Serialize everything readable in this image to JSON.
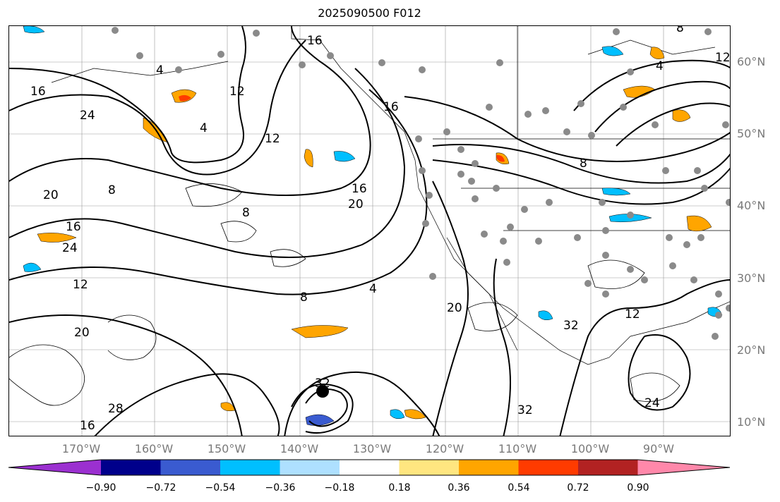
{
  "title": "2025090500 F012",
  "lat_labels": [
    "60°N",
    "50°N",
    "40°N",
    "30°N",
    "20°N",
    "10°N"
  ],
  "lon_labels": [
    "170°W",
    "160°W",
    "150°W",
    "140°W",
    "130°W",
    "120°W",
    "110°W",
    "100°W",
    "90°W"
  ],
  "colorbar": {
    "ticks": [
      "−0.90",
      "−0.72",
      "−0.54",
      "−0.36",
      "−0.18",
      "0.18",
      "0.36",
      "0.54",
      "0.72",
      "0.90"
    ],
    "colors": [
      "#9b30d0",
      "#00008b",
      "#3a5bd0",
      "#00bfff",
      "#aee0ff",
      "#ffffff",
      "#ffe680",
      "#ffa500",
      "#ff3b00",
      "#b22222",
      "#ff88aa"
    ],
    "extend": "both"
  },
  "contour_labels": [
    "16",
    "8",
    "12",
    "24",
    "4",
    "20",
    "16",
    "8",
    "12",
    "16",
    "20",
    "8",
    "4",
    "20",
    "32",
    "32",
    "32",
    "24",
    "12",
    "16",
    "8",
    "12",
    "4",
    "28",
    "16",
    "20",
    "24",
    "16",
    "8",
    "4",
    "12"
  ],
  "storm_marker": "tropical-cyclone-center"
}
